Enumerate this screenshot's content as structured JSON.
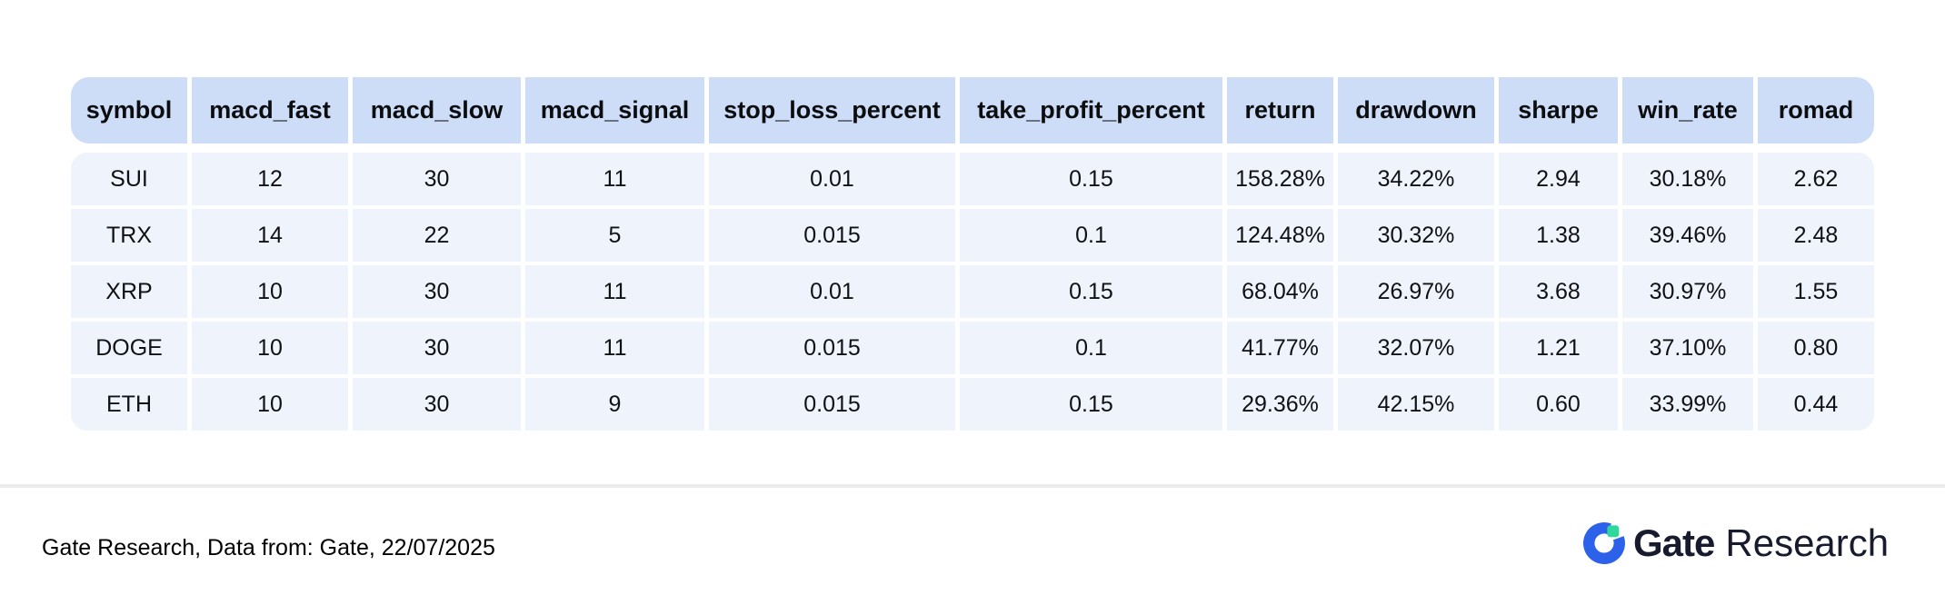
{
  "chart_data": {
    "type": "table",
    "columns": [
      "symbol",
      "macd_fast",
      "macd_slow",
      "macd_signal",
      "stop_loss_percent",
      "take_profit_percent",
      "return",
      "drawdown",
      "sharpe",
      "win_rate",
      "romad"
    ],
    "rows": [
      [
        "SUI",
        "12",
        "30",
        "11",
        "0.01",
        "0.15",
        "158.28%",
        "34.22%",
        "2.94",
        "30.18%",
        "2.62"
      ],
      [
        "TRX",
        "14",
        "22",
        "5",
        "0.015",
        "0.1",
        "124.48%",
        "30.32%",
        "1.38",
        "39.46%",
        "2.48"
      ],
      [
        "XRP",
        "10",
        "30",
        "11",
        "0.01",
        "0.15",
        "68.04%",
        "26.97%",
        "3.68",
        "30.97%",
        "1.55"
      ],
      [
        "DOGE",
        "10",
        "30",
        "11",
        "0.015",
        "0.1",
        "41.77%",
        "32.07%",
        "1.21",
        "37.10%",
        "0.80"
      ],
      [
        "ETH",
        "10",
        "30",
        "9",
        "0.015",
        "0.15",
        "29.36%",
        "42.15%",
        "0.60",
        "33.99%",
        "0.44"
      ]
    ],
    "title": "",
    "legend_position": "none",
    "grid": "off"
  },
  "footer": {
    "source_text": "Gate Research, Data from: Gate, 22/07/2025"
  },
  "logo": {
    "brand": "Gate",
    "suffix": "Research"
  },
  "colors": {
    "header_bg": "#cdddf7",
    "row_bg": "#eff3fb",
    "divider": "#ececec",
    "logo_blue": "#2b62e9",
    "logo_green": "#2ed79a",
    "logo_text": "#171b2d"
  }
}
